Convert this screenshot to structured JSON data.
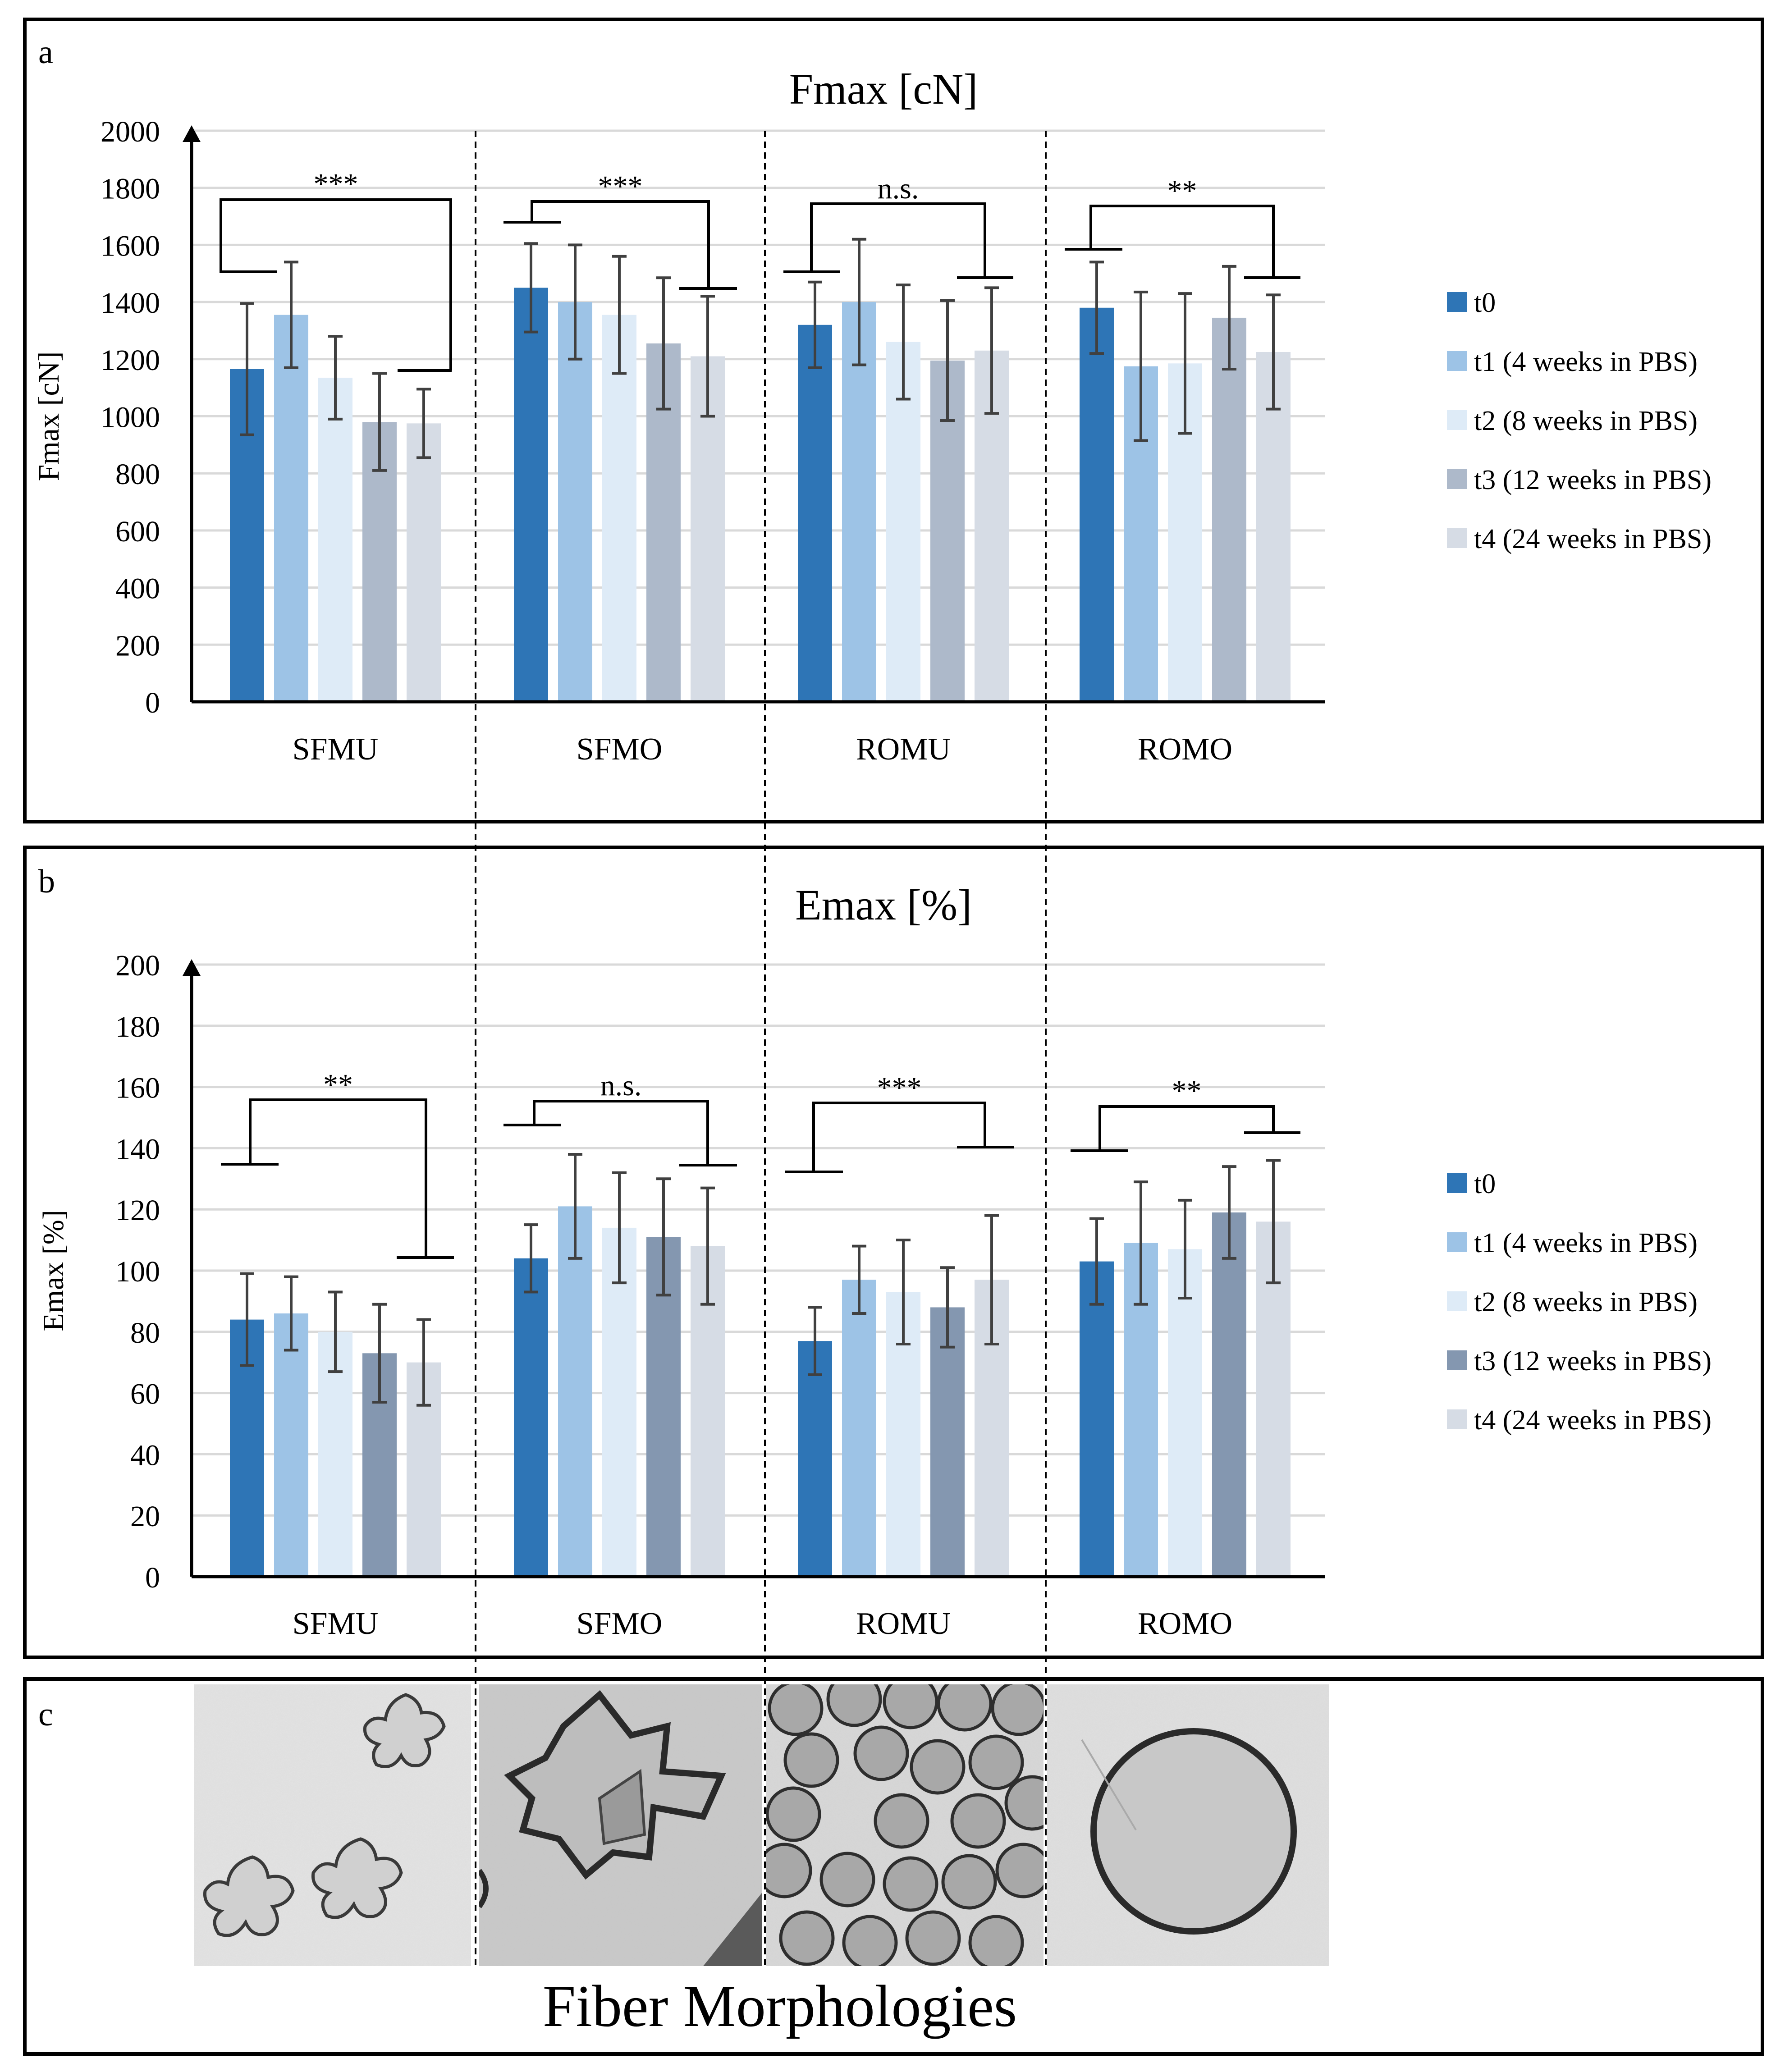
{
  "colors": {
    "t0": "#2e75b6",
    "t1": "#9dc3e6",
    "t2": "#deebf7",
    "t3_a": "#adb9ca",
    "t3_b": "#8497b0",
    "t4": "#d6dce5",
    "grid": "#d9d9d9",
    "axis": "#000000",
    "error": "#404040"
  },
  "legend_a": [
    "t0",
    "t1 (4 weeks in PBS)",
    "t2 (8 weeks in PBS)",
    "t3 (12 weeks in PBS)",
    "t4 (24 weeks in PBS)"
  ],
  "legend_b": [
    "t0",
    "t1 (4 weeks in PBS)",
    "t2 (8 weeks in PBS)",
    "t3 (12 weeks in PBS)",
    "t4 (24 weeks in PBS)"
  ],
  "chart_data": [
    {
      "panel": "a",
      "type": "bar",
      "title": "Fmax [cN]",
      "ylabel": "Fmax [cN]",
      "ylim": [
        0,
        2000
      ],
      "yticks": [
        "0",
        "200",
        "400",
        "600",
        "800",
        "1000",
        "1200",
        "1400",
        "1600",
        "1800",
        "2000"
      ],
      "grid": true,
      "legend_position": "right",
      "categories": [
        "SFMU",
        "SFMO",
        "ROMU",
        "ROMO"
      ],
      "series": [
        {
          "name": "t0",
          "values": [
            1165,
            1450,
            1320,
            1380
          ],
          "errors": [
            230,
            155,
            150,
            160
          ]
        },
        {
          "name": "t1 (4 weeks in PBS)",
          "values": [
            1355,
            1400,
            1400,
            1175
          ],
          "errors": [
            185,
            200,
            220,
            260
          ]
        },
        {
          "name": "t2 (8 weeks in PBS)",
          "values": [
            1135,
            1355,
            1260,
            1185
          ],
          "errors": [
            145,
            205,
            200,
            245
          ]
        },
        {
          "name": "t3 (12 weeks in PBS)",
          "values": [
            980,
            1255,
            1195,
            1345
          ],
          "errors": [
            170,
            230,
            210,
            180
          ]
        },
        {
          "name": "t4 (24 weeks in PBS)",
          "values": [
            975,
            1210,
            1230,
            1225
          ],
          "errors": [
            120,
            210,
            220,
            200
          ]
        }
      ],
      "significance": [
        "***",
        "***",
        "n.s.",
        "**"
      ]
    },
    {
      "panel": "b",
      "type": "bar",
      "title": "Emax [%]",
      "ylabel": "Emax [%]",
      "ylim": [
        0,
        200
      ],
      "yticks": [
        "0",
        "20",
        "40",
        "60",
        "80",
        "100",
        "120",
        "140",
        "160",
        "180",
        "200"
      ],
      "grid": true,
      "legend_position": "right",
      "categories": [
        "SFMU",
        "SFMO",
        "ROMU",
        "ROMO"
      ],
      "series": [
        {
          "name": "t0",
          "values": [
            84,
            104,
            77,
            103
          ],
          "errors": [
            15,
            11,
            11,
            14
          ]
        },
        {
          "name": "t1 (4 weeks in PBS)",
          "values": [
            86,
            121,
            97,
            109
          ],
          "errors": [
            12,
            17,
            11,
            20
          ]
        },
        {
          "name": "t2 (8 weeks in PBS)",
          "values": [
            80,
            114,
            93,
            107
          ],
          "errors": [
            13,
            18,
            17,
            16
          ]
        },
        {
          "name": "t3 (12 weeks in PBS)",
          "values": [
            73,
            111,
            88,
            119
          ],
          "errors": [
            16,
            19,
            13,
            15
          ]
        },
        {
          "name": "t4 (24 weeks in PBS)",
          "values": [
            70,
            108,
            97,
            116
          ],
          "errors": [
            14,
            19,
            21,
            20
          ]
        }
      ],
      "significance": [
        "**",
        "n.s.",
        "***",
        "**"
      ]
    }
  ],
  "panel_labels": {
    "a": "a",
    "b": "b",
    "c": "c"
  },
  "panel_c": {
    "title": "Fiber Morphologies",
    "images": [
      "SFMU fiber cross-section",
      "SFMO fiber cross-section",
      "ROMU fiber cross-section",
      "ROMO fiber cross-section"
    ]
  }
}
